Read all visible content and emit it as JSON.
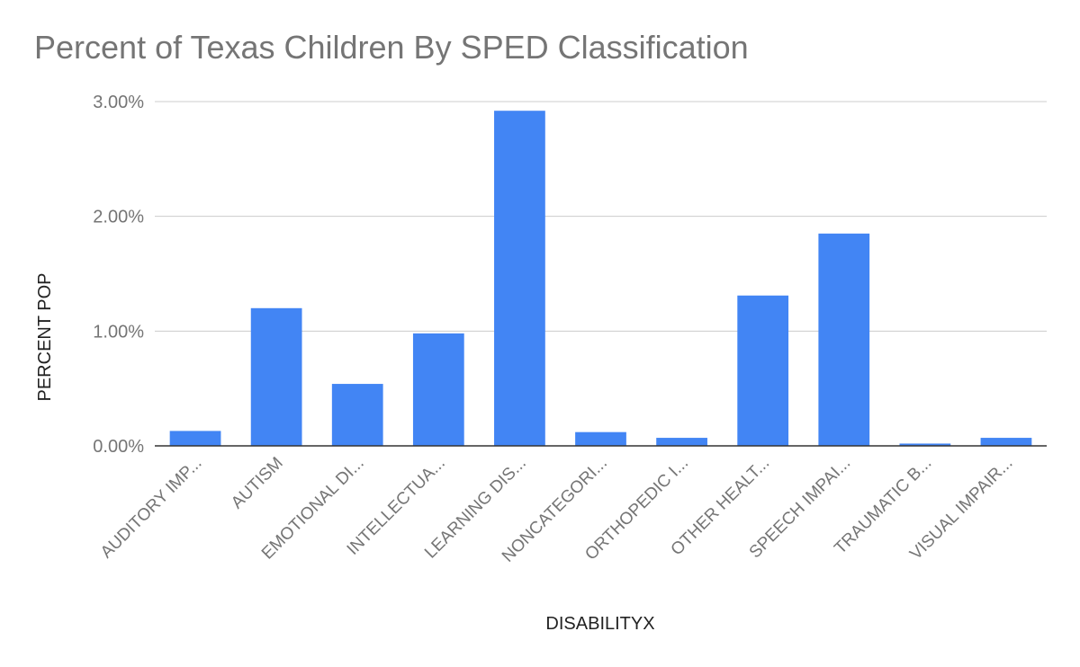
{
  "chart_data": {
    "type": "bar",
    "title": "Percent of Texas Children By SPED Classification",
    "xlabel": "DISABILITYX",
    "ylabel": "PERCENT POP",
    "categories": [
      "AUDITORY IMP...",
      "AUTISM",
      "EMOTIONAL DI...",
      "INTELLECTUA...",
      "LEARNING DIS...",
      "NONCATEGORI...",
      "ORTHOPEDIC I...",
      "OTHER HEALT...",
      "SPEECH IMPAI...",
      "TRAUMATIC B...",
      "VISUAL IMPAIR..."
    ],
    "values": [
      0.0013,
      0.012,
      0.0054,
      0.0098,
      0.0292,
      0.0012,
      0.0007,
      0.0131,
      0.0185,
      0.0002,
      0.0007
    ],
    "ylim": [
      0,
      0.03
    ],
    "yticks": [
      "0.00%",
      "1.00%",
      "2.00%",
      "3.00%"
    ],
    "grid": true,
    "legend": "none",
    "colors": {
      "bar": "#4285f4",
      "grid": "#cccccc",
      "axis": "#333333",
      "text": "#757575",
      "axis_title": "#222222"
    }
  }
}
